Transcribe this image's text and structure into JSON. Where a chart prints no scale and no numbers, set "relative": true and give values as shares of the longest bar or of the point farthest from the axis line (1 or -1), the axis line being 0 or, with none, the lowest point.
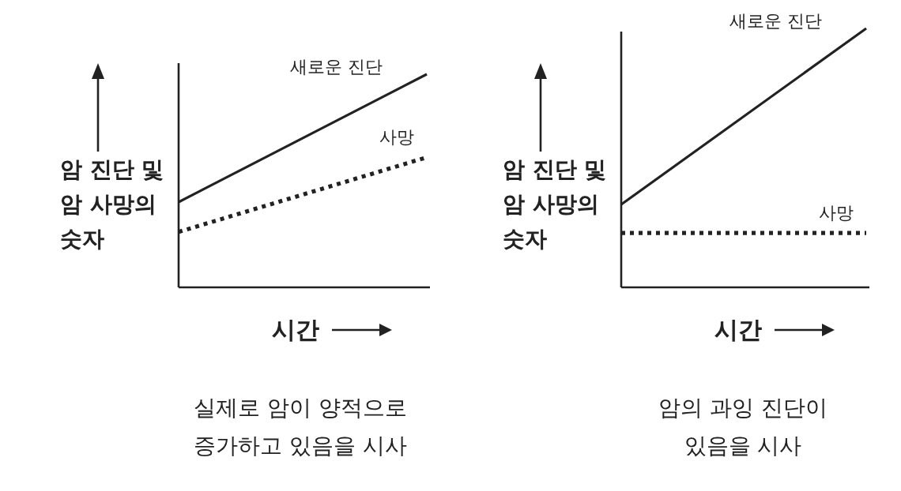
{
  "chart_data": [
    {
      "type": "line",
      "relative": true,
      "categories": [
        null,
        null
      ],
      "ylabel": "암 진단 및 암 사망의 숫자",
      "xlabel": "시간",
      "annotations": [
        "실제로 암이 양적으로 증가하고 있음을 시사"
      ],
      "series": [
        {
          "name": "새로운 진단",
          "color": "#222222",
          "line_style": "solid",
          "values": [
            0.4,
            1
          ]
        },
        {
          "name": "사망",
          "color": "#222222",
          "line_style": "dotted",
          "values": [
            0.26,
            0.61
          ]
        }
      ]
    },
    {
      "type": "line",
      "relative": true,
      "categories": [
        null,
        null
      ],
      "ylabel": "암 진단 및 암 사망의 숫자",
      "xlabel": "시간",
      "annotations": [
        "암의 과잉 진단이 있음을 시사"
      ],
      "series": [
        {
          "name": "새로운 진단",
          "color": "#222222",
          "line_style": "solid",
          "values": [
            0.32,
            1
          ]
        },
        {
          "name": "사망",
          "color": "#222222",
          "line_style": "dotted",
          "values": [
            0.21,
            0.21
          ]
        }
      ]
    }
  ]
}
